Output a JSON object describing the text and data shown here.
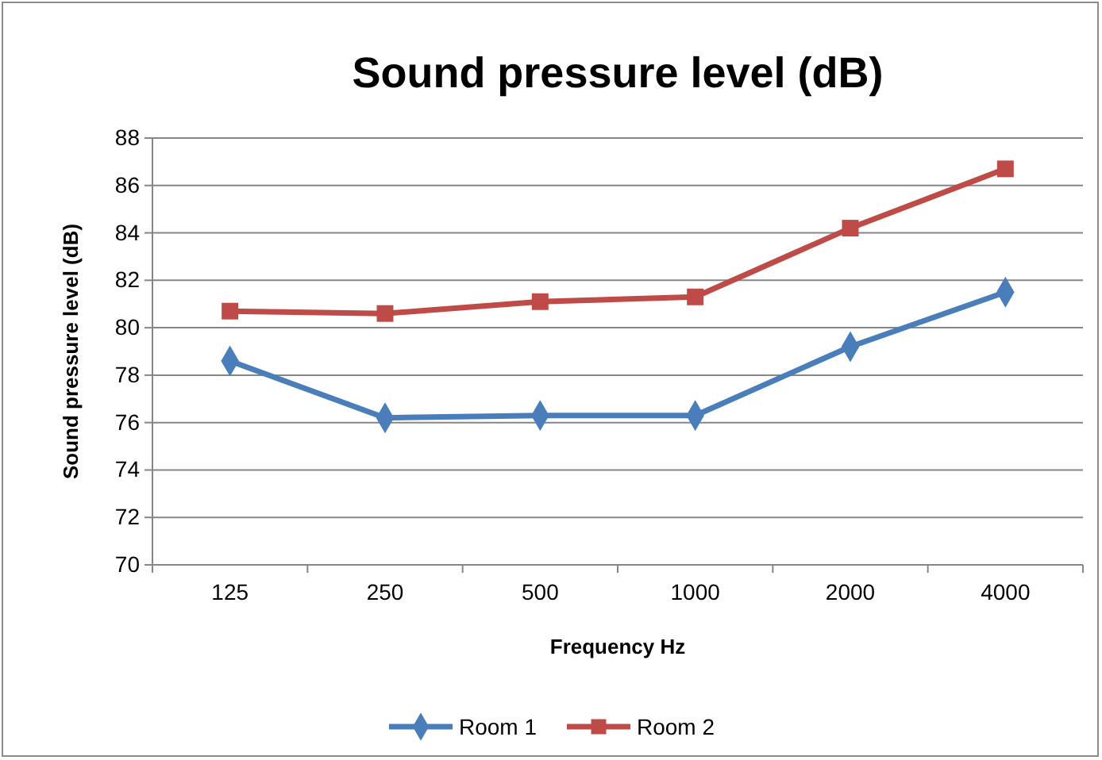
{
  "chart_data": {
    "type": "line",
    "title": "Sound pressure level (dB)",
    "xlabel": "Frequency Hz",
    "ylabel": "Sound pressure level (dB)",
    "categories": [
      "125",
      "250",
      "500",
      "1000",
      "2000",
      "4000"
    ],
    "series": [
      {
        "name": "Room 1",
        "color": "#4a7ebb",
        "values": [
          78.6,
          76.2,
          76.3,
          76.3,
          79.2,
          81.5
        ],
        "marker": "diamond"
      },
      {
        "name": "Room 2",
        "color": "#be4b48",
        "values": [
          80.7,
          80.6,
          81.1,
          81.3,
          84.2,
          86.7
        ],
        "marker": "square"
      }
    ],
    "ylim": [
      70,
      88
    ],
    "yticks": [
      70,
      72,
      74,
      76,
      78,
      80,
      82,
      84,
      86,
      88
    ],
    "grid": "y",
    "legend": "bottom",
    "line_style": "solid"
  }
}
